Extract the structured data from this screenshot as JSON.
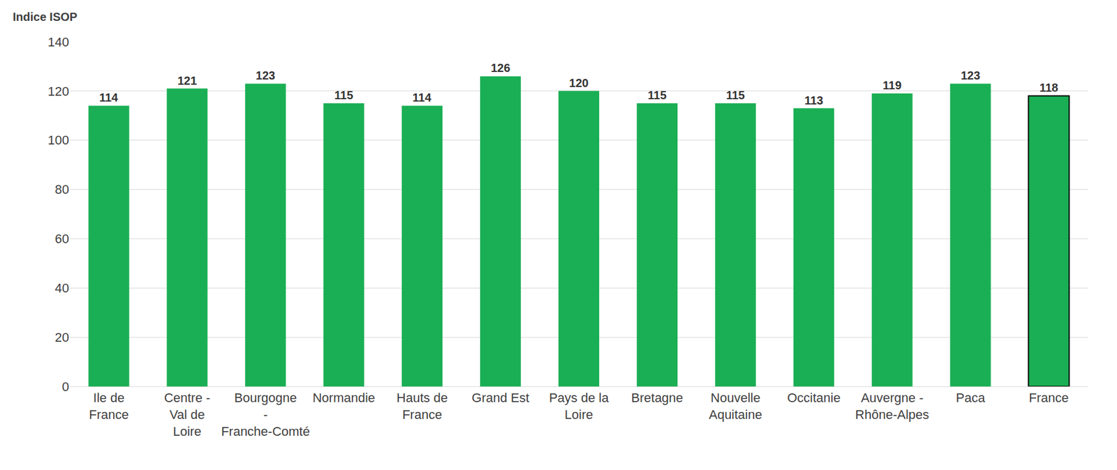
{
  "chart_data": {
    "type": "bar",
    "y_label": "Indice ISOP",
    "categories": [
      "Ile de France",
      "Centre - Val de Loire",
      "Bourgogne - Franche-Comté",
      "Normandie",
      "Hauts de France",
      "Grand Est",
      "Pays de la Loire",
      "Bretagne",
      "Nouvelle Aquitaine",
      "Occitanie",
      "Auvergne - Rhône-Alpes",
      "Paca",
      "France"
    ],
    "values": [
      114,
      121,
      123,
      115,
      114,
      126,
      120,
      115,
      115,
      113,
      119,
      123,
      118
    ],
    "color": "#1aaf54",
    "ylim": [
      0,
      140
    ],
    "yticks": [
      0,
      20,
      40,
      60,
      80,
      100,
      120,
      140
    ],
    "grid": true,
    "data_labels": true
  }
}
